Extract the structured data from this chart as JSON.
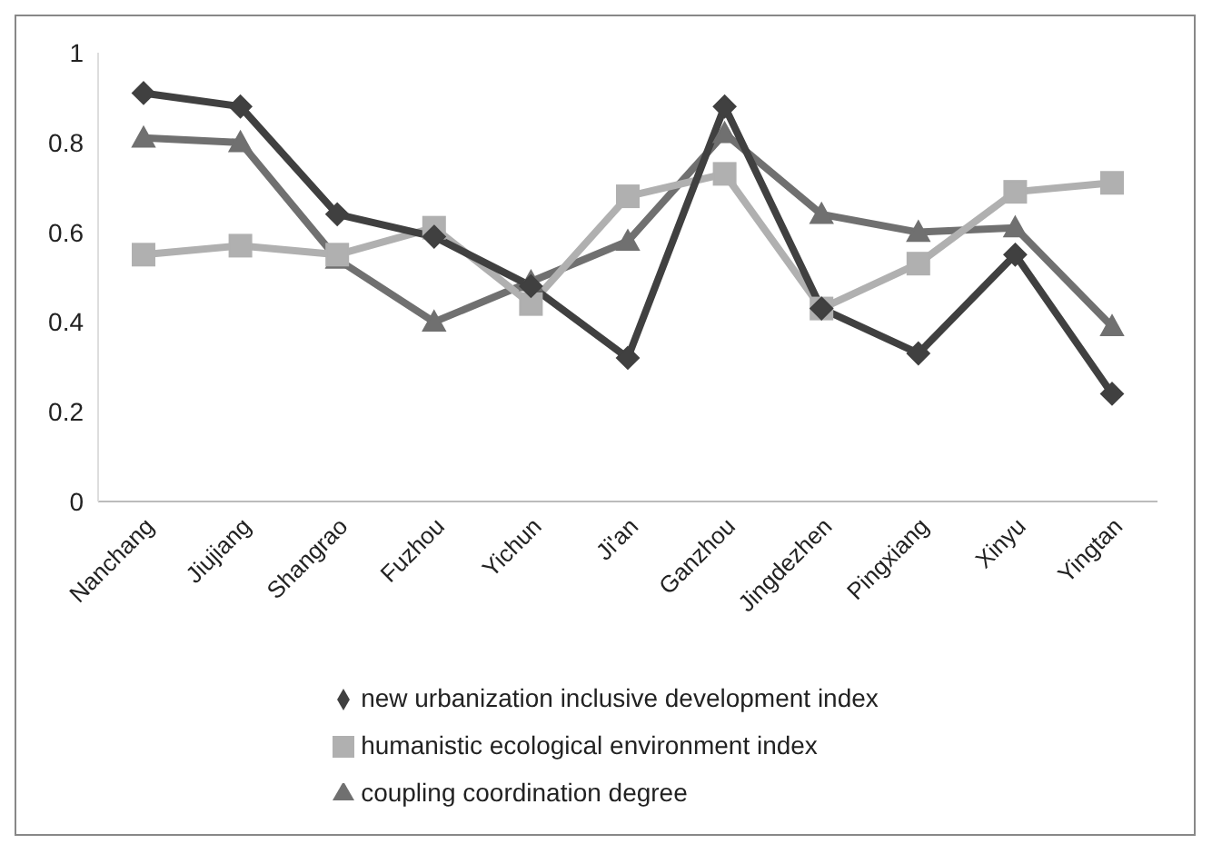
{
  "chart_data": {
    "type": "line",
    "categories": [
      "Nanchang",
      "Jiujiang",
      "Shangrao",
      "Fuzhou",
      "Yichun",
      "Ji'an",
      "Ganzhou",
      "Jingdezhen",
      "Pingxiang",
      "Xinyu",
      "Yingtan"
    ],
    "series": [
      {
        "name": "new urbanization inclusive development index",
        "color": "#404040",
        "marker": "diamond",
        "values": [
          0.91,
          0.88,
          0.64,
          0.59,
          0.48,
          0.32,
          0.88,
          0.43,
          0.33,
          0.55,
          0.24
        ]
      },
      {
        "name": "humanistic ecological environment index",
        "color": "#b0b0b0",
        "marker": "square",
        "values": [
          0.55,
          0.57,
          0.55,
          0.61,
          0.44,
          0.68,
          0.73,
          0.43,
          0.53,
          0.69,
          0.71
        ]
      },
      {
        "name": "coupling coordination degree",
        "color": "#707070",
        "marker": "triangle",
        "values": [
          0.81,
          0.8,
          0.54,
          0.4,
          0.49,
          0.58,
          0.82,
          0.64,
          0.6,
          0.61,
          0.39
        ]
      }
    ],
    "ylim": [
      0,
      1
    ],
    "yticks": [
      0,
      0.2,
      0.4,
      0.6,
      0.8,
      1
    ],
    "grid": false,
    "legend": "bottom"
  }
}
